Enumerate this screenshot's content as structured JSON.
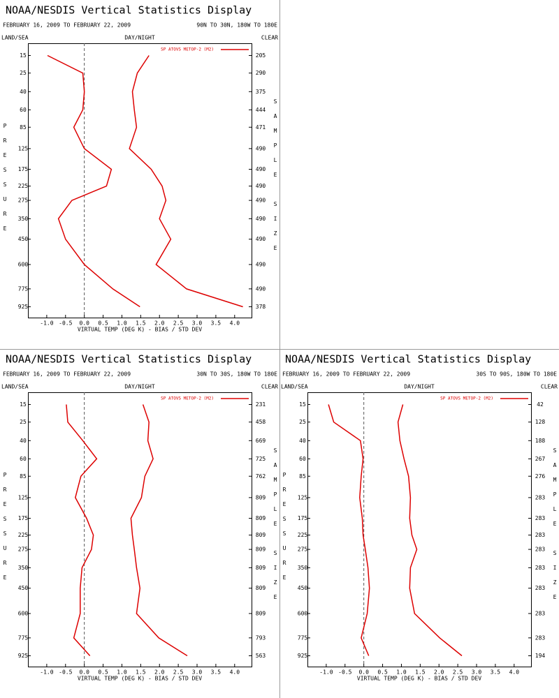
{
  "chart_data": [
    {
      "type": "line",
      "title": "NOAA/NESDIS Vertical Statistics Display",
      "subtitle": "FEBRUARY 16, 2009 TO FEBRUARY 22, 2009",
      "region": "90N TO 30N, 180W TO 180E",
      "left_header": "LAND/SEA",
      "center_header": "DAY/NIGHT",
      "right_header": "CLEAR",
      "ylabel": "PRESSURE",
      "y2label": "SAMPLE SIZE",
      "xlabel": "VIRTUAL TEMP (DEG K) - BIAS / STD DEV",
      "yscale": "power",
      "yexponent": 0.286,
      "y": [
        15,
        25,
        40,
        60,
        85,
        125,
        175,
        225,
        275,
        350,
        450,
        600,
        775,
        925
      ],
      "ylim": [
        1025,
        10
      ],
      "yticks": [
        15,
        25,
        40,
        60,
        85,
        125,
        175,
        225,
        275,
        350,
        450,
        600,
        775,
        925
      ],
      "xlim": [
        -1.5,
        4.45
      ],
      "xticks": [
        {
          "value": -1,
          "label": "-1.0"
        },
        -0.5,
        {
          "value": 0,
          "label": "0.0"
        },
        0.5,
        {
          "value": 1,
          "label": "1.0"
        },
        1.5,
        {
          "value": 2,
          "label": "2.0"
        },
        2.5,
        {
          "value": 3,
          "label": "3.0"
        },
        3.5,
        {
          "value": 4,
          "label": "4.0"
        }
      ],
      "sample_size": [
        205,
        290,
        375,
        444,
        471,
        490,
        490,
        490,
        490,
        490,
        490,
        490,
        490,
        378
      ],
      "series": [
        {
          "name": "SP ATOVS METOP-2 (M2)",
          "color": "#dd0000",
          "values": [
            -0.98,
            -0.04,
            0.0,
            -0.04,
            -0.28,
            0.0,
            0.72,
            0.59,
            -0.33,
            -0.69,
            -0.5,
            0.0,
            0.76,
            1.48
          ]
        },
        {
          "color": "#dd0000",
          "values": [
            1.72,
            1.41,
            1.28,
            1.33,
            1.39,
            1.2,
            1.78,
            2.07,
            2.17,
            2.0,
            2.3,
            1.91,
            2.72,
            4.22
          ]
        }
      ]
    },
    {
      "type": "line",
      "title": "NOAA/NESDIS Vertical Statistics Display",
      "subtitle": "FEBRUARY 16, 2009 TO FEBRUARY 22, 2009",
      "region": "30N TO 30S, 180W TO 180E",
      "left_header": "LAND/SEA",
      "center_header": "DAY/NIGHT",
      "right_header": "CLEAR",
      "ylabel": "PRESSURE",
      "y2label": "SAMPLE SIZE",
      "xlabel": "VIRTUAL TEMP (DEG K) - BIAS / STD DEV",
      "yscale": "power",
      "yexponent": 0.286,
      "y": [
        15,
        25,
        40,
        60,
        85,
        125,
        175,
        225,
        275,
        350,
        450,
        600,
        775,
        925
      ],
      "ylim": [
        1025,
        10
      ],
      "yticks": [
        15,
        25,
        40,
        60,
        85,
        125,
        175,
        225,
        275,
        350,
        450,
        600,
        775,
        925
      ],
      "xlim": [
        -1.5,
        4.45
      ],
      "xticks": [
        {
          "value": -1,
          "label": "-1.0"
        },
        -0.5,
        {
          "value": 0,
          "label": "0.0"
        },
        0.5,
        {
          "value": 1,
          "label": "1.0"
        },
        1.5,
        {
          "value": 2,
          "label": "2.0"
        },
        2.5,
        {
          "value": 3,
          "label": "3.0"
        },
        3.5,
        {
          "value": 4,
          "label": "4.0"
        }
      ],
      "sample_size": [
        231,
        458,
        669,
        725,
        762,
        809,
        809,
        809,
        809,
        809,
        809,
        809,
        793,
        563
      ],
      "series": [
        {
          "name": "SP ATOVS METOP-2 (M2)",
          "color": "#dd0000",
          "values": [
            -0.48,
            -0.44,
            -0.04,
            0.33,
            -0.09,
            -0.24,
            0.06,
            0.24,
            0.19,
            -0.06,
            -0.11,
            -0.11,
            -0.28,
            0.15
          ]
        },
        {
          "color": "#dd0000",
          "values": [
            1.56,
            1.72,
            1.69,
            1.83,
            1.61,
            1.52,
            1.24,
            1.28,
            1.33,
            1.39,
            1.48,
            1.39,
            1.98,
            2.74
          ]
        }
      ]
    },
    {
      "type": "line",
      "title": "NOAA/NESDIS Vertical Statistics Display",
      "subtitle": "FEBRUARY 16, 2009 TO FEBRUARY 22, 2009",
      "region": "30S TO 90S, 180W TO 180E",
      "left_header": "LAND/SEA",
      "center_header": "DAY/NIGHT",
      "right_header": "CLEAR",
      "ylabel": "PRESSURE",
      "y2label": "SAMPLE SIZE",
      "xlabel": "VIRTUAL TEMP (DEG K) - BIAS / STD DEV",
      "yscale": "power",
      "yexponent": 0.286,
      "y": [
        15,
        25,
        40,
        60,
        85,
        125,
        175,
        225,
        275,
        350,
        450,
        600,
        775,
        925
      ],
      "ylim": [
        1025,
        10
      ],
      "yticks": [
        15,
        25,
        40,
        60,
        85,
        125,
        175,
        225,
        275,
        350,
        450,
        600,
        775,
        925
      ],
      "xlim": [
        -1.5,
        4.45
      ],
      "xticks": [
        {
          "value": -1,
          "label": "-1.0"
        },
        -0.5,
        {
          "value": 0,
          "label": "0.0"
        },
        0.5,
        {
          "value": 1,
          "label": "1.0"
        },
        1.5,
        {
          "value": 2,
          "label": "2.0"
        },
        2.5,
        {
          "value": 3,
          "label": "3.0"
        },
        3.5,
        {
          "value": 4,
          "label": "4.0"
        }
      ],
      "sample_size": [
        42,
        128,
        188,
        267,
        276,
        283,
        283,
        283,
        283,
        283,
        283,
        283,
        283,
        194
      ],
      "series": [
        {
          "name": "SP ATOVS METOP-2 (M2)",
          "color": "#dd0000",
          "values": [
            -0.94,
            -0.8,
            -0.09,
            -0.02,
            -0.07,
            -0.11,
            -0.04,
            -0.02,
            0.04,
            0.11,
            0.15,
            0.09,
            -0.07,
            0.13
          ]
        },
        {
          "color": "#dd0000",
          "values": [
            1.04,
            0.91,
            0.96,
            1.07,
            1.19,
            1.24,
            1.22,
            1.28,
            1.41,
            1.24,
            1.22,
            1.35,
            2.02,
            2.61
          ]
        }
      ]
    }
  ]
}
